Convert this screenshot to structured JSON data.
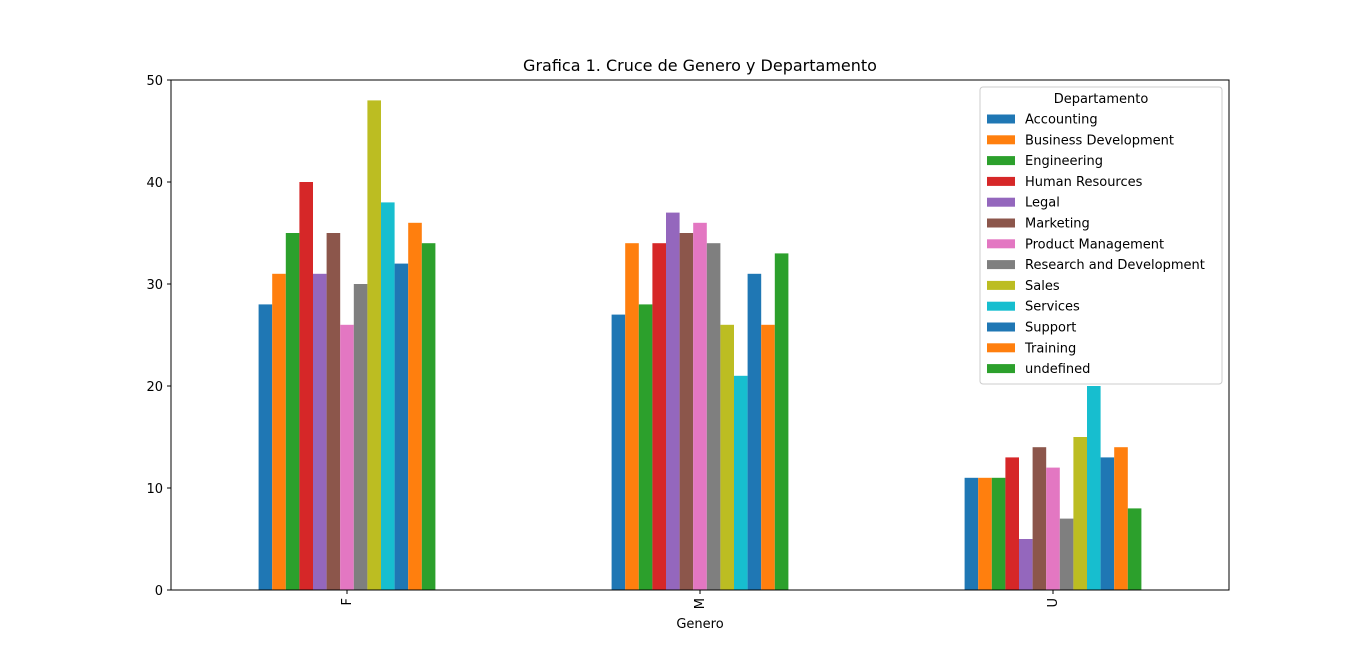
{
  "chart_data": {
    "type": "bar",
    "title": "Grafica 1. Cruce de Genero y Departamento",
    "xlabel": "Genero",
    "ylabel": "",
    "categories": [
      "F",
      "M",
      "U"
    ],
    "ylim": [
      0,
      50
    ],
    "yticks": [
      0,
      10,
      20,
      30,
      40,
      50
    ],
    "grid": false,
    "legend": {
      "title": "Departamento",
      "placement": "top-right"
    },
    "series": [
      {
        "name": "Accounting",
        "color": "#1f77b4",
        "values": [
          28,
          27,
          11
        ]
      },
      {
        "name": "Business Development",
        "color": "#ff7f0e",
        "values": [
          31,
          34,
          11
        ]
      },
      {
        "name": "Engineering",
        "color": "#2ca02c",
        "values": [
          35,
          28,
          11
        ]
      },
      {
        "name": "Human Resources",
        "color": "#d62728",
        "values": [
          40,
          34,
          13
        ]
      },
      {
        "name": "Legal",
        "color": "#9467bd",
        "values": [
          31,
          37,
          5
        ]
      },
      {
        "name": "Marketing",
        "color": "#8c564b",
        "values": [
          35,
          35,
          14
        ]
      },
      {
        "name": "Product Management",
        "color": "#e377c2",
        "values": [
          26,
          36,
          12
        ]
      },
      {
        "name": "Research and Development",
        "color": "#7f7f7f",
        "values": [
          30,
          34,
          7
        ]
      },
      {
        "name": "Sales",
        "color": "#bcbd22",
        "values": [
          48,
          26,
          15
        ]
      },
      {
        "name": "Services",
        "color": "#17becf",
        "values": [
          38,
          21,
          20
        ]
      },
      {
        "name": "Support",
        "color": "#1f77b4",
        "values": [
          32,
          31,
          13
        ]
      },
      {
        "name": "Training",
        "color": "#ff7f0e",
        "values": [
          36,
          26,
          14
        ]
      },
      {
        "name": "undefined",
        "color": "#2ca02c",
        "values": [
          34,
          33,
          8
        ]
      }
    ]
  }
}
